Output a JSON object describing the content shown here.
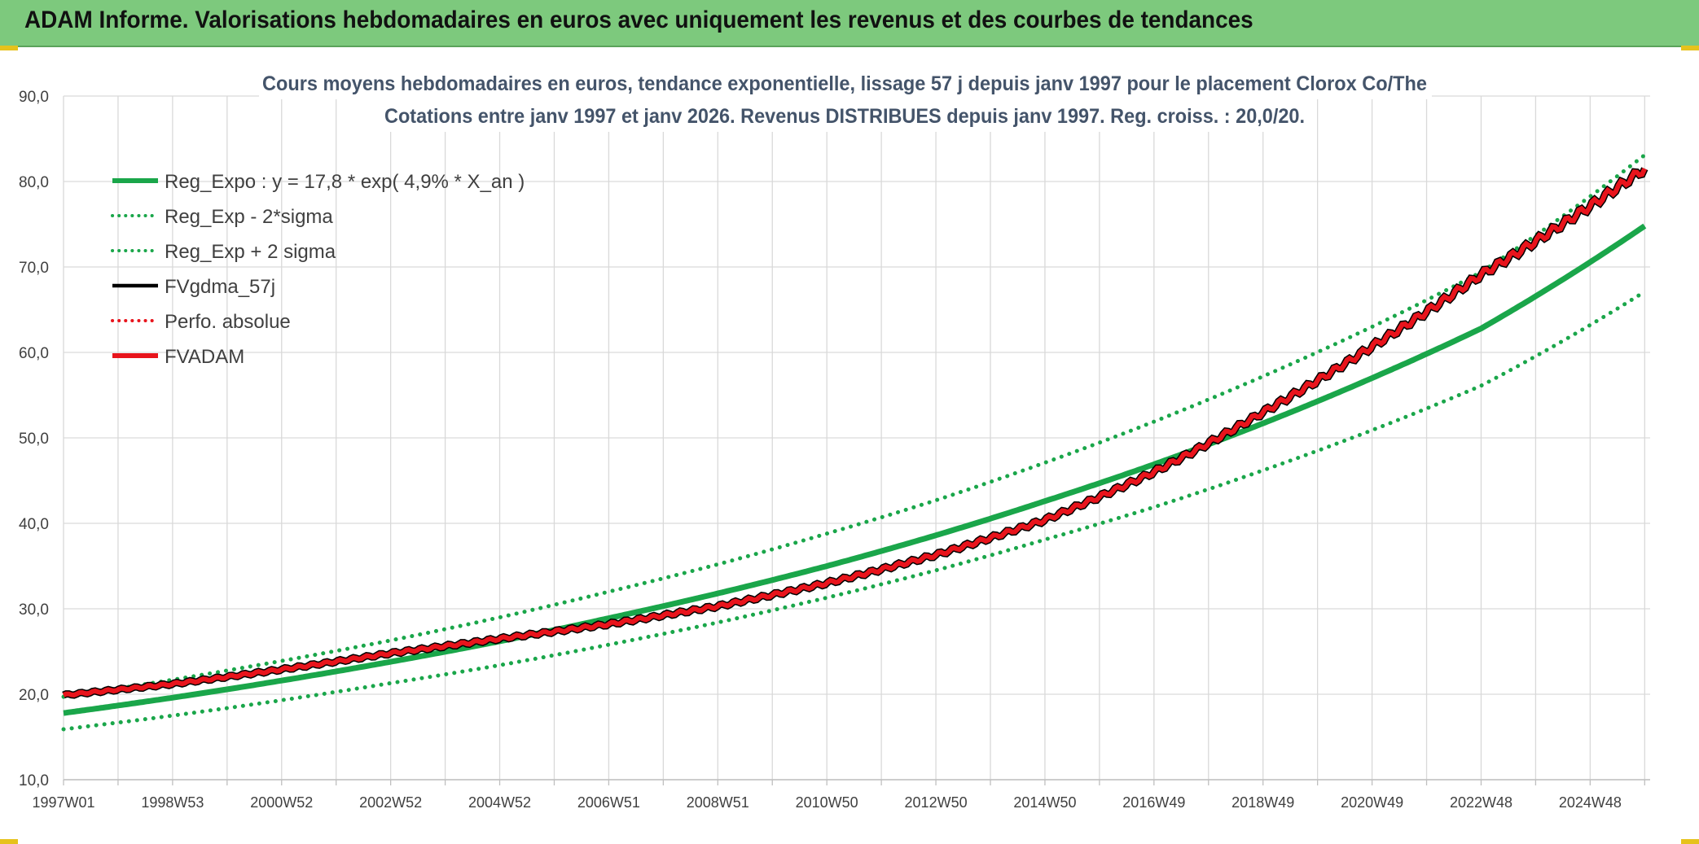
{
  "banner": {
    "title": "ADAM Informe. Valorisations hebdomadaires en euros avec uniquement les revenus et des courbes de tendances"
  },
  "colors": {
    "banner": "#7dc97d",
    "green": "#1aa64a",
    "red": "#e8141c",
    "black": "#000000",
    "title": "#44546a"
  },
  "chart_data": {
    "type": "line",
    "title": "Cours moyens hebdomadaires en euros, tendance exponentielle, lissage 57 j depuis janv 1997 pour le placement Clorox Co/The",
    "subtitle": "Cotations entre janv 1997 et janv 2026. Revenus DISTRIBUES depuis janv 1997. Reg. croiss. : 20,0/20.",
    "x_tick_labels": [
      "1997W01",
      "1998W53",
      "2000W52",
      "2002W52",
      "2004W52",
      "2006W51",
      "2008W51",
      "2010W50",
      "2012W50",
      "2014W50",
      "2016W49",
      "2018W49",
      "2020W49",
      "2022W48",
      "2024W48"
    ],
    "x_range": [
      1997.0,
      2026.1
    ],
    "y_tick_labels": [
      "10,0",
      "20,0",
      "30,0",
      "40,0",
      "50,0",
      "60,0",
      "70,0",
      "80,0",
      "90,0"
    ],
    "ylim": [
      10,
      90
    ],
    "grid": true,
    "legend_position": "top-left",
    "legend": [
      {
        "label": "Reg_Expo : y = 17,8 * exp( 4,9% *  X_an )",
        "style": "solid-thick",
        "color": "#1aa64a"
      },
      {
        "label": "Reg_Exp - 2*sigma",
        "style": "dotted",
        "color": "#1aa64a"
      },
      {
        "label": "Reg_Exp + 2 sigma",
        "style": "dotted",
        "color": "#1aa64a"
      },
      {
        "label": "FVgdma_57j",
        "style": "solid",
        "color": "#000000"
      },
      {
        "label": "Perfo. absolue",
        "style": "dotted",
        "color": "#e8141c"
      },
      {
        "label": "FVADAM",
        "style": "solid-thick",
        "color": "#e8141c"
      }
    ],
    "series": [
      {
        "name": "Reg_Expo : y = 17,8 * exp( 4,9% *  X_an )",
        "x": [
          1997,
          1999,
          2001,
          2003,
          2005,
          2007,
          2009,
          2011,
          2013,
          2015,
          2017,
          2019,
          2021,
          2023,
          2026
        ],
        "values": [
          17.8,
          19.6,
          21.6,
          23.8,
          26.2,
          28.9,
          31.8,
          35.0,
          38.6,
          42.6,
          46.9,
          51.7,
          57.0,
          62.8,
          74.8
        ]
      },
      {
        "name": "Reg_Exp - 2*sigma",
        "x": [
          1997,
          1999,
          2001,
          2003,
          2005,
          2007,
          2009,
          2011,
          2013,
          2015,
          2017,
          2019,
          2021,
          2023,
          2026
        ],
        "values": [
          15.9,
          17.5,
          19.3,
          21.3,
          23.4,
          25.8,
          28.4,
          31.3,
          34.5,
          38.1,
          41.9,
          46.2,
          50.9,
          56.1,
          67.1
        ]
      },
      {
        "name": "Reg_Exp + 2 sigma",
        "x": [
          1997,
          1999,
          2001,
          2003,
          2005,
          2007,
          2009,
          2011,
          2013,
          2015,
          2017,
          2019,
          2021,
          2023,
          2026
        ],
        "values": [
          19.7,
          21.7,
          23.9,
          26.3,
          29.0,
          32.0,
          35.2,
          38.8,
          42.7,
          47.1,
          51.9,
          57.2,
          63.0,
          69.4,
          83.1
        ]
      },
      {
        "name": "FVgdma_57j",
        "x": [
          1997,
          1999,
          2001,
          2003,
          2005,
          2007,
          2009,
          2011,
          2013,
          2015,
          2017,
          2019,
          2021,
          2023,
          2026
        ],
        "values": [
          19.9,
          21.2,
          22.9,
          24.8,
          26.5,
          28.2,
          30.3,
          33.0,
          36.3,
          40.4,
          46.0,
          53.0,
          60.7,
          69.1,
          81.5
        ]
      },
      {
        "name": "FVADAM",
        "x": [
          1997,
          1999,
          2001,
          2003,
          2005,
          2007,
          2009,
          2011,
          2013,
          2015,
          2017,
          2019,
          2021,
          2023,
          2026
        ],
        "values": [
          19.9,
          21.2,
          22.9,
          24.8,
          26.5,
          28.2,
          30.3,
          33.0,
          36.3,
          40.4,
          46.0,
          53.0,
          60.7,
          69.1,
          81.5
        ]
      }
    ]
  }
}
